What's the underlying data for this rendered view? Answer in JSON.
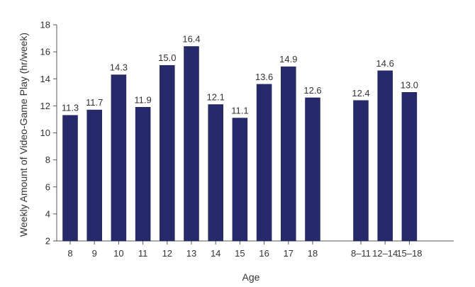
{
  "chart_data": {
    "type": "bar",
    "title": "",
    "xlabel": "Age",
    "ylabel": "Weekly Amount of Video-Game Play (hr/week)",
    "ylim": [
      2,
      18
    ],
    "yticks": [
      2,
      4,
      6,
      8,
      10,
      12,
      14,
      16,
      18
    ],
    "grid": false,
    "legend": "none",
    "bar_color": "#262a6b",
    "groups": [
      {
        "categories": [
          "8",
          "9",
          "10",
          "11",
          "12",
          "13",
          "14",
          "15",
          "16",
          "17",
          "18"
        ],
        "values": [
          11.3,
          11.7,
          14.3,
          11.9,
          15.0,
          16.4,
          12.1,
          11.1,
          13.6,
          14.9,
          12.6
        ],
        "labels": [
          "11.3",
          "11.7",
          "14.3",
          "11.9",
          "15.0",
          "16.4",
          "12.1",
          "11.1",
          "13.6",
          "14.9",
          "12.6"
        ]
      },
      {
        "categories": [
          "8–11",
          "12–14",
          "15–18"
        ],
        "values": [
          12.4,
          14.6,
          13.0
        ],
        "labels": [
          "12.4",
          "14.6",
          "13.0"
        ]
      }
    ]
  }
}
